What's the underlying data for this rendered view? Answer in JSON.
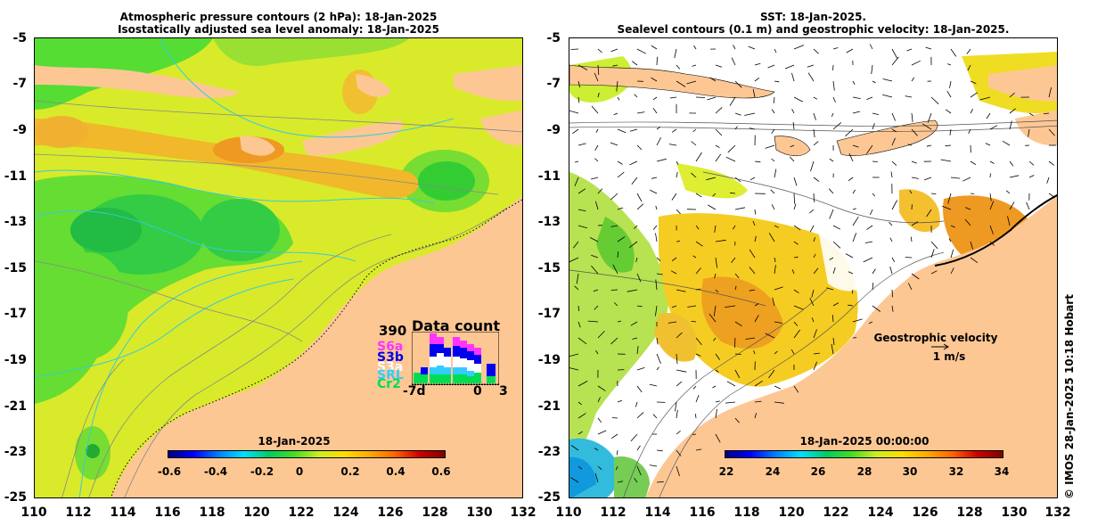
{
  "left_panel": {
    "title_line1": "Atmospheric pressure contours (2 hPa): 18-Jan-2025",
    "title_line2": "Isostatically adjusted sea level anomaly: 18-Jan-2025",
    "colorbar_date": "18-Jan-2025",
    "colorbar_ticks": [
      "-0.6",
      "-0.4",
      "-0.2",
      "0",
      "0.2",
      "0.4",
      "0.6"
    ],
    "data_count": {
      "max": "390",
      "title": "Data count",
      "missions": [
        "S6a",
        "S3b",
        "S3a",
        "SRL",
        "Cr2"
      ],
      "mission_colors": [
        "#ff33ff",
        "#0000ee",
        "#ffffff",
        "#33ccff",
        "#00dd55"
      ],
      "axis_start": "-7d",
      "axis_zero": "0",
      "axis_end": "3"
    }
  },
  "right_panel": {
    "title_line1": "SST: 18-Jan-2025.",
    "title_line2": "Sealevel contours (0.1 m) and geostrophic velocity: 18-Jan-2025.",
    "colorbar_date": "18-Jan-2025 00:00:00",
    "colorbar_ticks": [
      "22",
      "24",
      "26",
      "28",
      "30",
      "32",
      "34"
    ],
    "geostrophic_label": "Geostrophic velocity",
    "geostrophic_scale": "1 m/s"
  },
  "axes": {
    "lat_ticks": [
      "-5",
      "-7",
      "-9",
      "-11",
      "-13",
      "-15",
      "-17",
      "-19",
      "-21",
      "-23",
      "-25"
    ],
    "lon_ticks": [
      "110",
      "112",
      "114",
      "116",
      "118",
      "120",
      "122",
      "124",
      "126",
      "128",
      "130",
      "132"
    ]
  },
  "credit": "© IMOS 28-Jan-2025 10:18 Hobart",
  "colors": {
    "land": "#fdc794",
    "sla_green": "#44dd22",
    "sla_yellow": "#ddee22",
    "sla_orange": "#f0a020",
    "sst_white": "#ffffff"
  }
}
